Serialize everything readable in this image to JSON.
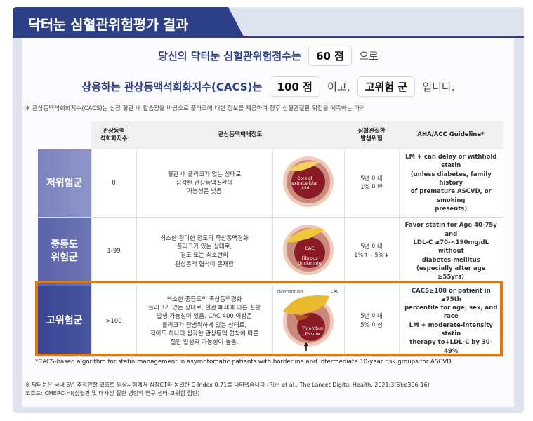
{
  "title": "닥터눈 심혈관위험평가 결과",
  "score_line": {
    "prefix": "당신의 닥터눈 심혈관위험점수는",
    "score": "60 점",
    "suffix": "으로"
  },
  "cacs_line": {
    "prefix": "상응하는 관상동맥석회화지수(CACS)는",
    "cacs": "100 점",
    "middle": "이고,",
    "group": "고위험 군",
    "suffix": "입니다."
  },
  "note": "※ 관상동맥석회화지수(CACS)는 심장 혈관 내 칼슘양을 바탕으로 플라크에 대한 정보를 제공하여 향후 심혈관질환 위험을 예측하는 마커",
  "table": {
    "headers": [
      "관상동맥\n석회화지수",
      "관상동맥폐쇄정도",
      "심혈관질환\n발생위험",
      "AHA/ACC Guideline*"
    ],
    "rows": [
      {
        "group": "저위험군",
        "cacs": "0",
        "description": "혈관 내 플리크가 없는 상태로\n심각한 관상동맥질환의\n가능성은 낮음",
        "image_label": "Core of\nextracellular\nlipid",
        "risk": "5년 이내\n1% 미만",
        "guideline": "LM + can delay or withhold statin\n(unless diabetes, family history\nof premature ASCVD, or smoking\npresents)"
      },
      {
        "group": "중등도\n위험군",
        "cacs": "1-99",
        "description": "최소한 경미한 정도의 죽상동맥경화\n플리크가 있는 상태로,\n경도 또는 최소한의\n관상동맥 협착이 존재함",
        "image_label": "CAC\nFibrous\nthickening",
        "risk": "5년 이내\n1%↑ - 5%↓",
        "guideline": "Favor statin for Age 40-75y and\nLDL-C ≥70-<190mg/dL without\ndiabetes mellitus\n(especially after age ≥55yrs)"
      },
      {
        "group": "고위험군",
        "cacs": ">100",
        "description": "최소한 중등도의 죽상동맥경화\n플리크가 있는 상태로, 혈관 폐쇄에 따른 질환\n발생 가능성이 있음. CAC 400 이상은\n플리크가 광범위하게 있는 상태로,\n적어도 하나의 심각한 관상동맥 협착에 따른\n질환 발생의 가능성이 높음.",
        "image_label": "Thrombus\nFissure",
        "image_top_left": "Haemorrhage",
        "image_top_right": "CAC",
        "risk": "5년 이내\n5% 이상",
        "guideline": "CACS≥100 or patient in ≥75th\npercentile for age, sex, and race\nLM + moderate-intensity statin\ntherapy to↓LDL-C by 30-49%"
      }
    ]
  },
  "footnote": "*CACS-based algorithm for statin management in asymptomatic patients with borderline and intermediate 10-year risk groups for ASCVD",
  "reference": {
    "line1": "※ 닥터눈은 국내 5년 추적관찰 코호트 임상시험에서 심장CT와 동일한 C-Index 0.71를 나타냈습니다 (Rim et al., The Lancet Digital Health. 2021;3(5):e306-16)",
    "line2": "코호트: CMERC-HI(심혈관 및 대사성 질환 병인학 연구 센터-고위험 집단)"
  },
  "colors": {
    "navy": "#2c3f87",
    "low": "#8088c0",
    "mid": "#5e67ad",
    "high": "#3a4494",
    "highlight": "#e07a10"
  }
}
